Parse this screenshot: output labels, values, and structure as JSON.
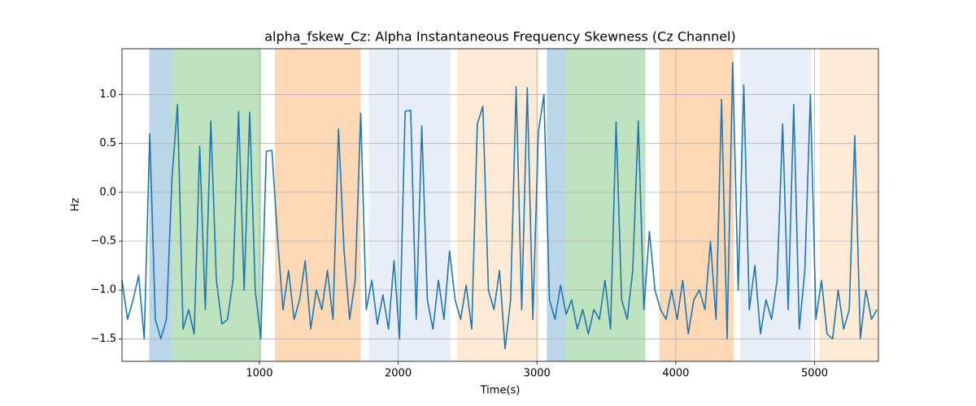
{
  "chart_data": {
    "type": "line",
    "title": "alpha_fskew_Cz: Alpha Instantaneous Frequency Skewness (Cz Channel)",
    "x_label": "Time(s)",
    "y_label": "Hz",
    "xlim": [
      10,
      5460
    ],
    "ylim": [
      -1.73,
      1.47
    ],
    "xticks": [
      1000,
      2000,
      3000,
      4000,
      5000
    ],
    "yticks": [
      {
        "value": -1.5,
        "label": "−1.5"
      },
      {
        "value": -1.0,
        "label": "−1.0"
      },
      {
        "value": -0.5,
        "label": "−0.5"
      },
      {
        "value": 0.0,
        "label": "0.0"
      },
      0.5,
      {
        "value": 1.0,
        "label": "1.0"
      }
    ],
    "grid": true,
    "bands": [
      {
        "x0": 206,
        "x1": 371,
        "color": "rgba(31,119,180,0.3)"
      },
      {
        "x0": 371,
        "x1": 1012,
        "color": "rgba(44,160,44,0.3)"
      },
      {
        "x0": 1112,
        "x1": 1729,
        "color": "rgba(255,127,14,0.3)"
      },
      {
        "x0": 1788,
        "x1": 2376,
        "color": "rgba(174,199,232,0.3)"
      },
      {
        "x0": 2424,
        "x1": 3012,
        "color": "rgba(255,187,120,0.3)"
      },
      {
        "x0": 3071,
        "x1": 3206,
        "color": "rgba(31,119,180,0.3)"
      },
      {
        "x0": 3206,
        "x1": 3782,
        "color": "rgba(44,160,44,0.3)"
      },
      {
        "x0": 3882,
        "x1": 4418,
        "color": "rgba(255,127,14,0.3)"
      },
      {
        "x0": 4465,
        "x1": 4976,
        "color": "rgba(174,199,232,0.3)"
      },
      {
        "x0": 5035,
        "x1": 5460,
        "color": "rgba(255,187,120,0.3)"
      }
    ],
    "color": "#1f77b4",
    "x": [
      10,
      50,
      90,
      130,
      170,
      210,
      250,
      290,
      330,
      370,
      410,
      450,
      490,
      530,
      570,
      610,
      650,
      690,
      730,
      770,
      810,
      850,
      890,
      930,
      970,
      1010,
      1050,
      1090,
      1130,
      1170,
      1210,
      1250,
      1290,
      1330,
      1370,
      1410,
      1450,
      1490,
      1530,
      1570,
      1610,
      1650,
      1690,
      1730,
      1770,
      1810,
      1850,
      1890,
      1930,
      1970,
      2010,
      2050,
      2090,
      2130,
      2170,
      2210,
      2250,
      2290,
      2330,
      2370,
      2410,
      2450,
      2490,
      2530,
      2570,
      2610,
      2650,
      2690,
      2730,
      2770,
      2810,
      2850,
      2890,
      2930,
      2970,
      3010,
      3050,
      3090,
      3130,
      3170,
      3210,
      3250,
      3290,
      3330,
      3370,
      3410,
      3450,
      3490,
      3530,
      3570,
      3610,
      3650,
      3690,
      3730,
      3770,
      3810,
      3850,
      3890,
      3930,
      3970,
      4010,
      4050,
      4090,
      4130,
      4170,
      4210,
      4250,
      4290,
      4330,
      4370,
      4410,
      4450,
      4490,
      4530,
      4570,
      4610,
      4650,
      4690,
      4730,
      4770,
      4810,
      4850,
      4890,
      4930,
      4970,
      5010,
      5050,
      5090,
      5130,
      5170,
      5210,
      5250,
      5290,
      5330,
      5370,
      5410,
      5450
    ],
    "values": [
      -0.9,
      -1.3,
      -1.1,
      -0.85,
      -1.5,
      0.6,
      -1.3,
      -1.5,
      -1.3,
      0.14,
      0.9,
      -1.4,
      -1.2,
      -1.45,
      0.47,
      -1.2,
      0.73,
      -0.9,
      -1.35,
      -1.3,
      -0.9,
      0.83,
      -1.0,
      0.82,
      -1.0,
      -1.5,
      0.42,
      0.43,
      -0.45,
      -1.2,
      -0.8,
      -1.3,
      -1.1,
      -0.7,
      -1.4,
      -1.0,
      -1.2,
      -0.8,
      -1.3,
      0.65,
      -0.6,
      -1.3,
      -0.9,
      0.81,
      -1.2,
      -0.9,
      -1.35,
      -1.05,
      -1.4,
      -0.7,
      -1.5,
      0.83,
      0.84,
      -1.3,
      0.68,
      -1.1,
      -1.4,
      -0.9,
      -1.3,
      -0.6,
      -1.1,
      -1.3,
      -0.95,
      -1.4,
      0.7,
      0.88,
      -1.0,
      -1.2,
      -0.8,
      -1.6,
      -1.1,
      1.08,
      -1.2,
      1.07,
      -1.3,
      0.62,
      1.0,
      -1.1,
      -1.3,
      -0.95,
      -1.25,
      -1.1,
      -1.4,
      -1.2,
      -1.45,
      -1.2,
      -1.3,
      -0.9,
      -1.4,
      0.72,
      -1.1,
      -1.3,
      -0.8,
      0.73,
      -1.2,
      -0.4,
      -1.0,
      -1.2,
      -1.3,
      -1.0,
      -1.3,
      -0.9,
      -1.45,
      -1.1,
      -1.0,
      -1.2,
      -0.5,
      -1.3,
      0.95,
      -1.5,
      1.33,
      -1.0,
      1.1,
      -1.2,
      -0.75,
      -1.45,
      -1.1,
      -1.3,
      -0.9,
      0.7,
      -1.2,
      0.9,
      -1.4,
      -0.8,
      1.0,
      -1.3,
      -0.9,
      -1.45,
      -1.5,
      -1.0,
      -1.4,
      -1.2,
      0.58,
      -1.5,
      -1.0,
      -1.3,
      -1.2
    ]
  }
}
